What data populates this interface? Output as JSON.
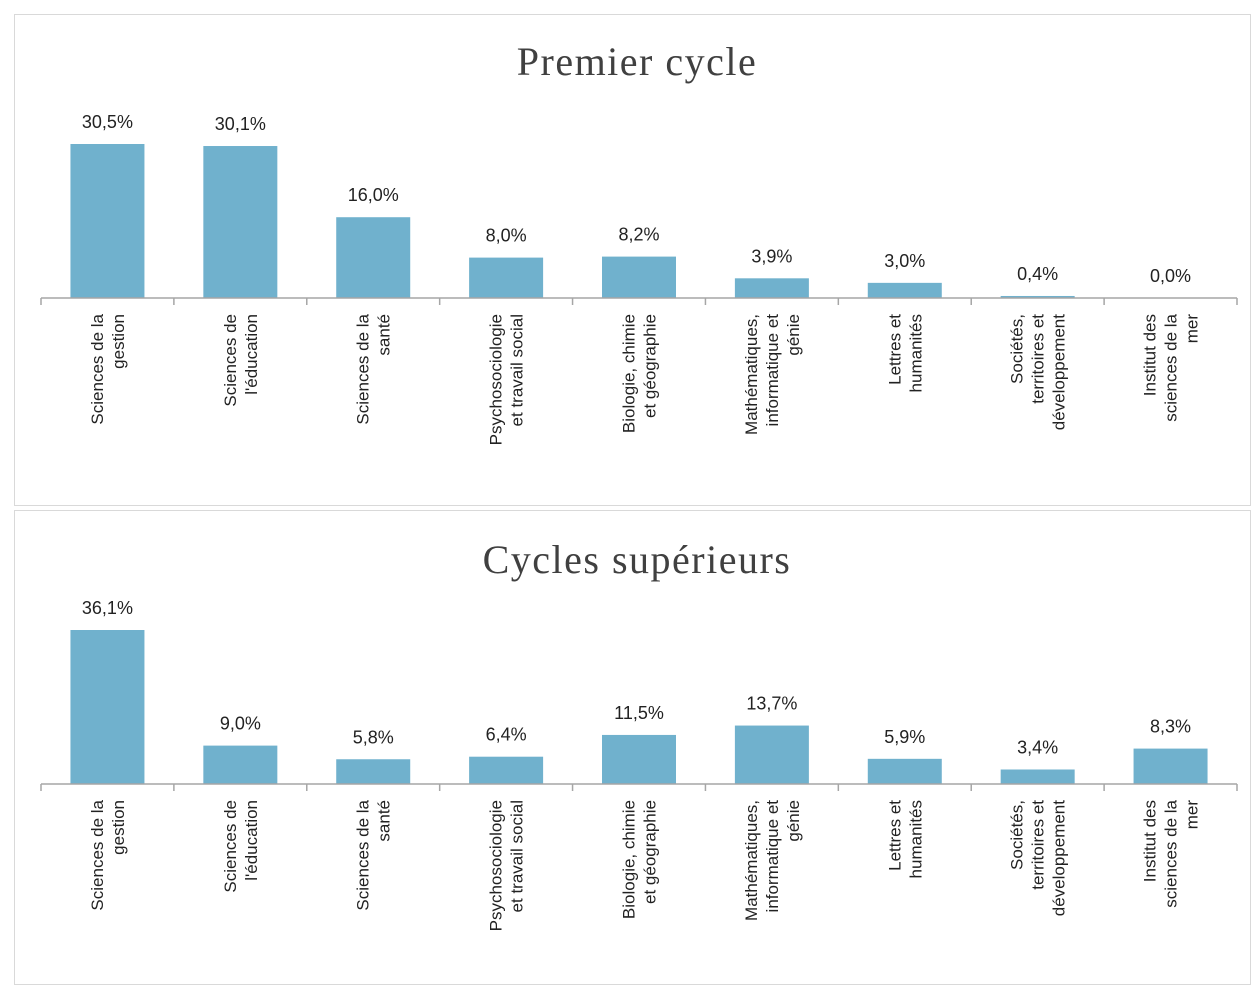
{
  "chart_data": [
    {
      "type": "bar",
      "title": "Premier cycle",
      "color": "#70b1cd",
      "categories": [
        "Sciences de la gestion",
        "Sciences de l'éducation",
        "Sciences de la santé",
        "Psychosociologie et travail social",
        "Biologie, chimie et géographie",
        "Mathématiques, informatique et génie",
        "Lettres et humanités",
        "Sociétés, territoires et développement",
        "Institut des sciences de la mer"
      ],
      "values": [
        30.5,
        30.1,
        16.0,
        8.0,
        8.2,
        3.9,
        3.0,
        0.4,
        0.0
      ],
      "value_labels": [
        "30,5%",
        "30,1%",
        "16,0%",
        "8,0%",
        "8,2%",
        "3,9%",
        "3,0%",
        "0,4%",
        "0,0%"
      ]
    },
    {
      "type": "bar",
      "title": "Cycles supérieurs",
      "color": "#70b1cd",
      "categories": [
        "Sciences de la gestion",
        "Sciences de l'éducation",
        "Sciences de la santé",
        "Psychosociologie et travail social",
        "Biologie, chimie et géographie",
        "Mathématiques, informatique et génie",
        "Lettres et humanités",
        "Sociétés, territoires et développement",
        "Institut des sciences de la mer"
      ],
      "values": [
        36.1,
        9.0,
        5.8,
        6.4,
        11.5,
        13.7,
        5.9,
        3.4,
        8.3
      ],
      "value_labels": [
        "36,1%",
        "9,0%",
        "5,8%",
        "6,4%",
        "11,5%",
        "13,7%",
        "5,9%",
        "3,4%",
        "8,3%"
      ]
    }
  ]
}
